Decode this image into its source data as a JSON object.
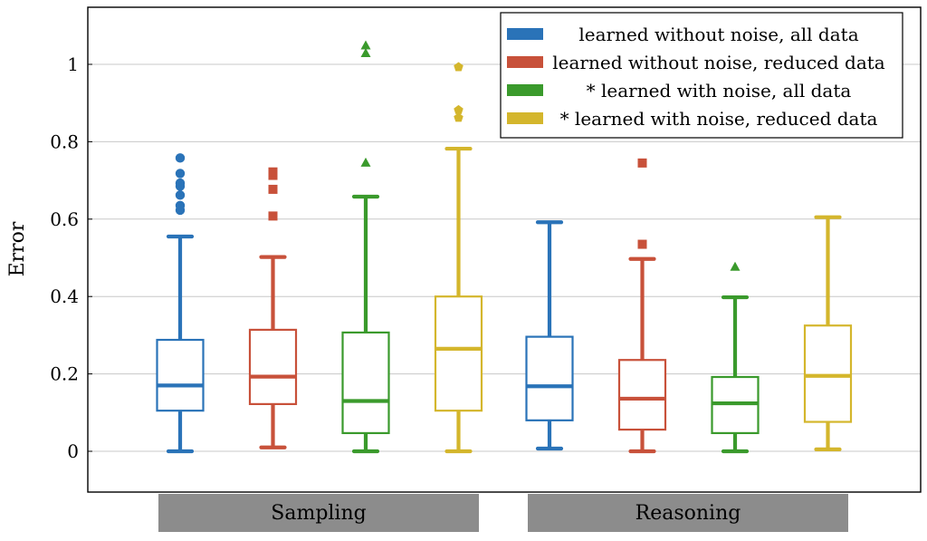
{
  "chart_data": {
    "type": "box",
    "ylabel": "Error",
    "ylim": [
      -0.1,
      1.15
    ],
    "yticks": [
      0,
      0.2,
      0.4,
      0.6,
      0.8,
      1
    ],
    "ytick_labels": [
      "0",
      "0.2",
      "0.4",
      "0.6",
      "0.8",
      "1"
    ],
    "grid": true,
    "legend_position": "top-right",
    "groups": [
      "Sampling",
      "Reasoning"
    ],
    "series": [
      {
        "name": "learned without noise, all data",
        "color": "#2a73b8",
        "marker": "circle",
        "boxes": [
          {
            "group": "Sampling",
            "whisker_low": 0.0,
            "q1": 0.105,
            "median": 0.17,
            "q3": 0.288,
            "whisker_high": 0.555,
            "outliers": [
              0.623,
              0.635,
              0.662,
              0.685,
              0.693,
              0.718,
              0.758
            ]
          },
          {
            "group": "Reasoning",
            "whisker_low": 0.007,
            "q1": 0.08,
            "median": 0.168,
            "q3": 0.296,
            "whisker_high": 0.592,
            "outliers": []
          }
        ]
      },
      {
        "name": "learned without noise, reduced data",
        "color": "#c8513a",
        "marker": "square",
        "boxes": [
          {
            "group": "Sampling",
            "whisker_low": 0.01,
            "q1": 0.122,
            "median": 0.193,
            "q3": 0.314,
            "whisker_high": 0.502,
            "outliers": [
              0.608,
              0.677,
              0.713,
              0.722
            ]
          },
          {
            "group": "Reasoning",
            "whisker_low": 0.0,
            "q1": 0.056,
            "median": 0.136,
            "q3": 0.236,
            "whisker_high": 0.497,
            "outliers": [
              0.535,
              0.745
            ]
          }
        ]
      },
      {
        "name": "* learned with noise, all data",
        "color": "#3a9a2c",
        "marker": "triangle",
        "boxes": [
          {
            "group": "Sampling",
            "whisker_low": 0.0,
            "q1": 0.047,
            "median": 0.13,
            "q3": 0.307,
            "whisker_high": 0.658,
            "outliers": [
              0.745,
              1.028,
              1.048
            ]
          },
          {
            "group": "Reasoning",
            "whisker_low": 0.0,
            "q1": 0.047,
            "median": 0.124,
            "q3": 0.192,
            "whisker_high": 0.398,
            "outliers": [
              0.476
            ]
          }
        ]
      },
      {
        "name": "* learned with noise, reduced data",
        "color": "#d4b62c",
        "marker": "pentagon",
        "boxes": [
          {
            "group": "Sampling",
            "whisker_low": 0.0,
            "q1": 0.105,
            "median": 0.265,
            "q3": 0.4,
            "whisker_high": 0.782,
            "outliers": [
              0.862,
              0.882,
              0.993
            ]
          },
          {
            "group": "Reasoning",
            "whisker_low": 0.005,
            "q1": 0.076,
            "median": 0.195,
            "q3": 0.325,
            "whisker_high": 0.605,
            "outliers": []
          }
        ]
      }
    ]
  }
}
